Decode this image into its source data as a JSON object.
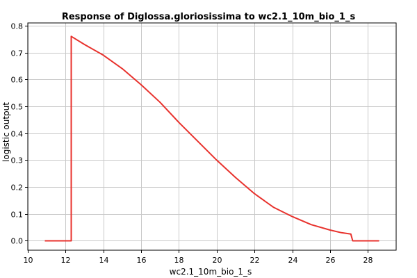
{
  "chart_data": {
    "type": "line",
    "title": "Response of Diglossa.gloriosissima to wc2.1_10m_bio_1_s",
    "xlabel": "wc2.1_10m_bio_1_s",
    "ylabel": "logistic output",
    "xlim": [
      10,
      29.5
    ],
    "ylim": [
      -0.035,
      0.81
    ],
    "x_ticks": [
      10,
      12,
      14,
      16,
      18,
      20,
      22,
      24,
      26,
      28
    ],
    "y_ticks": [
      0.0,
      0.1,
      0.2,
      0.3,
      0.4,
      0.5,
      0.6,
      0.7,
      0.8
    ],
    "x_tick_labels": [
      "10",
      "12",
      "14",
      "16",
      "18",
      "20",
      "22",
      "24",
      "26",
      "28"
    ],
    "y_tick_labels": [
      "0.0",
      "0.1",
      "0.2",
      "0.3",
      "0.4",
      "0.5",
      "0.6",
      "0.7",
      "0.8"
    ],
    "grid": true,
    "series": [
      {
        "color": "#e8322d",
        "points": [
          [
            10.9,
            0.0
          ],
          [
            12.3,
            0.0
          ],
          [
            12.3,
            0.76
          ],
          [
            13.0,
            0.73
          ],
          [
            14.0,
            0.69
          ],
          [
            15.0,
            0.64
          ],
          [
            16.0,
            0.58
          ],
          [
            17.0,
            0.515
          ],
          [
            18.0,
            0.44
          ],
          [
            19.0,
            0.37
          ],
          [
            20.0,
            0.3
          ],
          [
            21.0,
            0.235
          ],
          [
            22.0,
            0.175
          ],
          [
            23.0,
            0.125
          ],
          [
            24.0,
            0.09
          ],
          [
            25.0,
            0.06
          ],
          [
            26.0,
            0.04
          ],
          [
            26.6,
            0.03
          ],
          [
            27.1,
            0.025
          ],
          [
            27.2,
            0.0
          ],
          [
            28.6,
            0.0
          ]
        ]
      }
    ]
  }
}
